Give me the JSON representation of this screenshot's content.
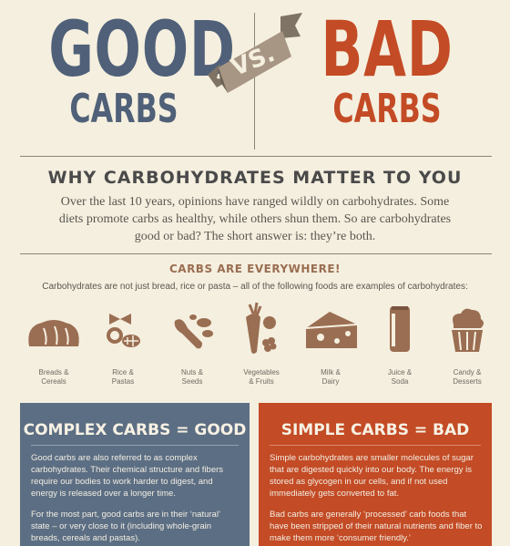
{
  "header": {
    "good_word": "GOOD",
    "good_carbs": "CARBS",
    "vs": "VS.",
    "bad_word": "BAD",
    "bad_carbs": "CARBS"
  },
  "why": {
    "title": "WHY CARBOHYDRATES MATTER TO YOU",
    "text": "Over the last 10 years, opinions have ranged wildly on carbohydrates. Some diets promote carbs as healthy, while others shun them. So are carbohydrates good or bad? The short answer is: they’re both."
  },
  "everywhere": {
    "title": "CARBS ARE EVERYWHERE!",
    "text": "Carbohydrates are not just bread, rice or pasta – all of the following foods are examples of carbohydrates:"
  },
  "foods": [
    {
      "line1": "Breads &",
      "line2": "Cereals",
      "icon": "bread-icon"
    },
    {
      "line1": "Rice &",
      "line2": "Pastas",
      "icon": "pasta-icon"
    },
    {
      "line1": "Nuts &",
      "line2": "Seeds",
      "icon": "nuts-icon"
    },
    {
      "line1": "Vegetables",
      "line2": "& Fruits",
      "icon": "vegetables-icon"
    },
    {
      "line1": "Milk &",
      "line2": "Dairy",
      "icon": "cheese-icon"
    },
    {
      "line1": "Juice &",
      "line2": "Soda",
      "icon": "can-icon"
    },
    {
      "line1": "Candy &",
      "line2": "Desserts",
      "icon": "cupcake-icon"
    }
  ],
  "complex": {
    "title": "COMPLEX CARBS = GOOD",
    "p1": "Good carbs are also referred to as complex carbohydrates. Their chemical structure and fibers require our bodies to work harder to digest, and energy is released over a longer time.",
    "p2": "For the most part, good carbs are in their ‘natural’ state – or very close to it (including whole-grain breads, cereals and pastas)."
  },
  "simple": {
    "title": "SIMPLE CARBS = BAD",
    "p1": "Simple carbohydrates are smaller molecules of sugar that are digested quickly into our body. The energy is stored as glycogen in our cells, and if not used immediately gets converted to fat.",
    "p2": "Bad carbs are generally ‘processed’ carb foods that have been stripped of their natural nutrients and fiber to make them more ‘consumer friendly.’"
  },
  "colors": {
    "good": "#4f6078",
    "bad": "#c34b25",
    "food_icon": "#9a6e52",
    "background": "#f5efdf"
  }
}
